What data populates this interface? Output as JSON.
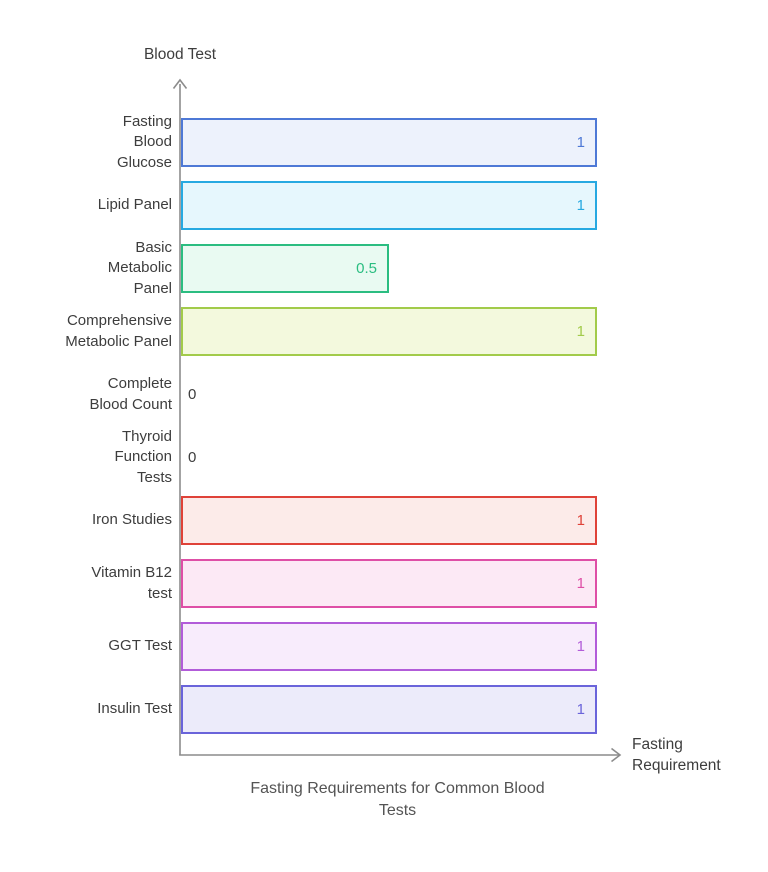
{
  "chart_data": {
    "type": "bar",
    "orientation": "horizontal",
    "title": "Fasting Requirements for Common Blood Tests",
    "title_lines": [
      "Fasting Requirements for Common Blood",
      "Tests"
    ],
    "xlabel": "Fasting Requirement",
    "xlabel_lines": [
      "Fasting",
      "Requirement"
    ],
    "ylabel": "Blood Test",
    "xlim": [
      0,
      1
    ],
    "grid": false,
    "legend": false,
    "categories": [
      "Fasting Blood Glucose",
      "Lipid Panel",
      "Basic Metabolic Panel",
      "Comprehensive Metabolic Panel",
      "Complete Blood Count",
      "Thyroid Function Tests",
      "Iron Studies",
      "Vitamin B12 test",
      "GGT Test",
      "Insulin Test"
    ],
    "label_lines": [
      [
        "Fasting",
        "Blood",
        "Glucose"
      ],
      [
        "Lipid Panel"
      ],
      [
        "Basic",
        "Metabolic",
        "Panel"
      ],
      [
        "Comprehensive",
        "Metabolic Panel"
      ],
      [
        "Complete",
        "Blood Count"
      ],
      [
        "Thyroid",
        "Function",
        "Tests"
      ],
      [
        "Iron Studies"
      ],
      [
        "Vitamin B12",
        "test"
      ],
      [
        "GGT Test"
      ],
      [
        "Insulin Test"
      ]
    ],
    "values": [
      1,
      1,
      0.5,
      1,
      0,
      0,
      1,
      1,
      1,
      1
    ],
    "value_labels": [
      "1",
      "1",
      "0.5",
      "1",
      "0",
      "0",
      "1",
      "1",
      "1",
      "1"
    ],
    "bar_colors": [
      {
        "border": "#4e79d6",
        "fill": "#edf2fc"
      },
      {
        "border": "#27a9e1",
        "fill": "#e6f7fd"
      },
      {
        "border": "#2bbd81",
        "fill": "#e9faf2"
      },
      {
        "border": "#a2cb4a",
        "fill": "#f3f9dd"
      },
      {
        "border": "#3d3d3d",
        "fill": "#ffffff"
      },
      {
        "border": "#3d3d3d",
        "fill": "#ffffff"
      },
      {
        "border": "#df4238",
        "fill": "#fcebe9"
      },
      {
        "border": "#de4fa6",
        "fill": "#fce9f5"
      },
      {
        "border": "#b25cd9",
        "fill": "#f8ecfc"
      },
      {
        "border": "#6a64da",
        "fill": "#ecebfa"
      }
    ]
  },
  "style_colors": {
    "axis": "#8c8c8c",
    "label_text": "#3d3d3d",
    "title_text": "#545454"
  }
}
